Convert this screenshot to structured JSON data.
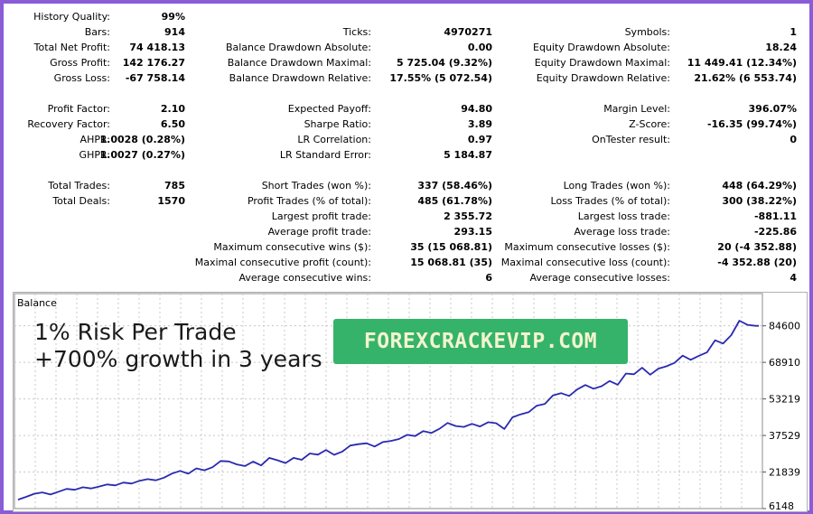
{
  "stats": {
    "col1": [
      {
        "label": "History Quality:",
        "value": "99%",
        "row": 0
      },
      {
        "label": "Bars:",
        "value": "914",
        "row": 1
      },
      {
        "label": "Total Net Profit:",
        "value": "74 418.13",
        "row": 2
      },
      {
        "label": "Gross Profit:",
        "value": "142 176.27",
        "row": 3
      },
      {
        "label": "Gross Loss:",
        "value": "-67 758.14",
        "row": 4
      },
      {
        "label": "Profit Factor:",
        "value": "2.10",
        "row": 6
      },
      {
        "label": "Recovery Factor:",
        "value": "6.50",
        "row": 7
      },
      {
        "label": "AHPR:",
        "value": "1.0028 (0.28%)",
        "row": 8
      },
      {
        "label": "GHPR:",
        "value": "1.0027 (0.27%)",
        "row": 9
      },
      {
        "label": "Total Trades:",
        "value": "785",
        "row": 11
      },
      {
        "label": "Total Deals:",
        "value": "1570",
        "row": 12
      }
    ],
    "col2": [
      {
        "label": "Ticks:",
        "value": "4970271",
        "row": 1
      },
      {
        "label": "Balance Drawdown Absolute:",
        "value": "0.00",
        "row": 2
      },
      {
        "label": "Balance Drawdown Maximal:",
        "value": "5 725.04 (9.32%)",
        "row": 3
      },
      {
        "label": "Balance Drawdown Relative:",
        "value": "17.55% (5 072.54)",
        "row": 4
      },
      {
        "label": "Expected Payoff:",
        "value": "94.80",
        "row": 6
      },
      {
        "label": "Sharpe Ratio:",
        "value": "3.89",
        "row": 7
      },
      {
        "label": "LR Correlation:",
        "value": "0.97",
        "row": 8
      },
      {
        "label": "LR Standard Error:",
        "value": "5 184.87",
        "row": 9
      },
      {
        "label": "Short Trades (won %):",
        "value": "337 (58.46%)",
        "row": 11
      },
      {
        "label": "Profit Trades (% of total):",
        "value": "485 (61.78%)",
        "row": 12
      },
      {
        "label": "Largest profit trade:",
        "value": "2 355.72",
        "row": 13
      },
      {
        "label": "Average profit trade:",
        "value": "293.15",
        "row": 14
      },
      {
        "label": "Maximum consecutive wins ($):",
        "value": "35 (15 068.81)",
        "row": 15
      },
      {
        "label": "Maximal consecutive profit (count):",
        "value": "15 068.81 (35)",
        "row": 16
      },
      {
        "label": "Average consecutive wins:",
        "value": "6",
        "row": 17
      }
    ],
    "col3": [
      {
        "label": "Symbols:",
        "value": "1",
        "row": 1
      },
      {
        "label": "Equity Drawdown Absolute:",
        "value": "18.24",
        "row": 2
      },
      {
        "label": "Equity Drawdown Maximal:",
        "value": "11 449.41 (12.34%)",
        "row": 3
      },
      {
        "label": "Equity Drawdown Relative:",
        "value": "21.62% (6 553.74)",
        "row": 4
      },
      {
        "label": "Margin Level:",
        "value": "396.07%",
        "row": 6
      },
      {
        "label": "Z-Score:",
        "value": "-16.35 (99.74%)",
        "row": 7
      },
      {
        "label": "OnTester result:",
        "value": "0",
        "row": 8
      },
      {
        "label": "Long Trades (won %):",
        "value": "448 (64.29%)",
        "row": 11
      },
      {
        "label": "Loss Trades (% of total):",
        "value": "300 (38.22%)",
        "row": 12
      },
      {
        "label": "Largest loss trade:",
        "value": "-881.11",
        "row": 13
      },
      {
        "label": "Average loss trade:",
        "value": "-225.86",
        "row": 14
      },
      {
        "label": "Maximum consecutive losses ($):",
        "value": "20 (-4 352.88)",
        "row": 15
      },
      {
        "label": "Maximal consecutive loss (count):",
        "value": "-4 352.88 (20)",
        "row": 16
      },
      {
        "label": "Average consecutive losses:",
        "value": "4",
        "row": 17
      }
    ]
  },
  "overlay": {
    "line1": "1% Risk Per Trade",
    "line2": "+700% growth in 3 years",
    "banner": "FOREXCRACKEVIP.COM"
  },
  "chart_data": {
    "type": "line",
    "title": "Balance",
    "xlabel": "",
    "ylabel": "",
    "ylim": [
      6148,
      93000
    ],
    "yticks": [
      6148,
      21839,
      37529,
      53219,
      68910,
      84600
    ],
    "grid": true,
    "series_color": "#2a2ab0",
    "series": [
      {
        "x": [
          0,
          10,
          20,
          30,
          40,
          50,
          60,
          70,
          80,
          90,
          100,
          110,
          120,
          130,
          140,
          150,
          160,
          170,
          180,
          190,
          200,
          210,
          220,
          230,
          240,
          250,
          260,
          270,
          280,
          290,
          300,
          310,
          320,
          330,
          340,
          350,
          360,
          370,
          380,
          390,
          400,
          410,
          420,
          430,
          440,
          450,
          460,
          470,
          480,
          490,
          500,
          510,
          520,
          530,
          540,
          550,
          560,
          570,
          580,
          590,
          600,
          610,
          620,
          630,
          640,
          650,
          660,
          670,
          680,
          690,
          700,
          710,
          720,
          730,
          740,
          750,
          760,
          770,
          780,
          790,
          800,
          810,
          820,
          830,
          840,
          850,
          860,
          870,
          880,
          890,
          900,
          910,
          914
        ],
        "values": [
          10000,
          11200,
          12500,
          13100,
          12200,
          13400,
          14600,
          14200,
          15300,
          14800,
          15600,
          16500,
          16100,
          17300,
          16900,
          18100,
          18800,
          18300,
          19400,
          21200,
          22300,
          21100,
          23400,
          22600,
          23900,
          26600,
          26400,
          25100,
          24400,
          26300,
          24700,
          27900,
          26900,
          25700,
          27900,
          27100,
          29800,
          29300,
          31300,
          29200,
          30600,
          33200,
          33800,
          34200,
          32800,
          34700,
          35200,
          36000,
          37800,
          37300,
          39400,
          38600,
          40400,
          42900,
          41600,
          41200,
          42500,
          41400,
          43200,
          42800,
          40300,
          45300,
          46600,
          47500,
          50300,
          51100,
          54700,
          55700,
          54500,
          57300,
          59200,
          57600,
          58700,
          60900,
          59300,
          64100,
          63800,
          66600,
          63600,
          66200,
          67200,
          68700,
          71800,
          70000,
          71700,
          73200,
          78400,
          77000,
          80600,
          86800,
          85000,
          84600,
          84600
        ]
      }
    ]
  }
}
